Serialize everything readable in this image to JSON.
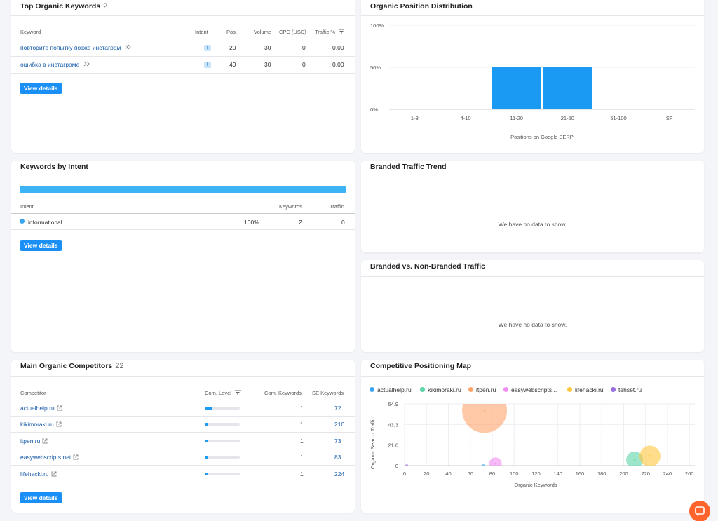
{
  "top_keywords": {
    "title": "Top Organic Keywords",
    "count": "2",
    "columns": {
      "keyword": "Keyword",
      "intent": "Intent",
      "pos": "Pos.",
      "volume": "Volume",
      "cpc": "CPC (USD)",
      "traffic": "Traffic %"
    },
    "rows": [
      {
        "keyword": "повторите попытку позже инстаграм",
        "intent": "I",
        "pos": "20",
        "volume": "30",
        "cpc": "0",
        "traffic": "0.00"
      },
      {
        "keyword": "ошибка в инстаграме",
        "intent": "I",
        "pos": "49",
        "volume": "30",
        "cpc": "0",
        "traffic": "0.00"
      }
    ],
    "button": "View details"
  },
  "position_distribution": {
    "title": "Organic Position Distribution",
    "chart_data": {
      "type": "bar",
      "categories": [
        "1-3",
        "4-10",
        "11-20",
        "21-50",
        "51-100",
        "SF"
      ],
      "values": [
        0,
        0,
        50,
        50,
        0,
        0
      ],
      "ytick_labels": [
        "100%",
        "50%",
        "0%"
      ],
      "ylim": [
        0,
        100
      ],
      "xlabel": "Positions on Google SERP",
      "color": "#1a9af2"
    }
  },
  "keywords_by_intent": {
    "title": "Keywords by Intent",
    "columns": {
      "intent": "Intent",
      "keywords": "Keywords",
      "traffic": "Traffic"
    },
    "rows": [
      {
        "name": "informational",
        "percent": "100%",
        "keywords": "2",
        "traffic": "0",
        "color": "#3ba4ef",
        "share": 100
      }
    ],
    "button": "View details"
  },
  "branded_trend": {
    "title": "Branded Traffic Trend",
    "message": "We have no data to show."
  },
  "branded_vs_non": {
    "title": "Branded vs. Non-Branded Traffic",
    "message": "We have no data to show."
  },
  "competitors": {
    "title": "Main Organic Competitors",
    "count": "22",
    "columns": {
      "competitor": "Competitor",
      "level": "Com. Level",
      "com_keywords": "Com. Keywords",
      "se_keywords": "SE Keywords"
    },
    "rows": [
      {
        "domain": "actualhelp.ru",
        "level": 0.22,
        "com_keywords": "1",
        "se_keywords": "72"
      },
      {
        "domain": "kikimoraki.ru",
        "level": 0.1,
        "com_keywords": "1",
        "se_keywords": "210"
      },
      {
        "domain": "itpen.ru",
        "level": 0.1,
        "com_keywords": "1",
        "se_keywords": "73"
      },
      {
        "domain": "easywebscripts.net",
        "level": 0.1,
        "com_keywords": "1",
        "se_keywords": "83"
      },
      {
        "domain": "lifehacki.ru",
        "level": 0.08,
        "com_keywords": "1",
        "se_keywords": "224"
      }
    ],
    "button": "View details"
  },
  "positioning_map": {
    "title": "Competitive Positioning Map",
    "chart_data": {
      "type": "scatter",
      "xlabel": "Organic Keywords",
      "ylabel": "Organic Search Traffic",
      "xlim": [
        0,
        265
      ],
      "ylim": [
        0,
        64.9
      ],
      "xticks": [
        0,
        20,
        40,
        60,
        80,
        100,
        120,
        140,
        160,
        180,
        200,
        220,
        240,
        260
      ],
      "yticks": [
        "0",
        "21.6",
        "43.3",
        "64.9"
      ],
      "series": [
        {
          "name": "actualhelp.ru",
          "color": "#3ba4ef",
          "x": 72,
          "y": 0,
          "size": 2
        },
        {
          "name": "kikimoraki.ru",
          "color": "#5ed6a8",
          "x": 210,
          "y": 6,
          "size": 12
        },
        {
          "name": "itpen.ru",
          "color": "#ffa36b",
          "x": 73,
          "y": 58,
          "size": 32
        },
        {
          "name": "easywebscripts...",
          "color": "#f08cf0",
          "x": 83,
          "y": 2,
          "size": 9
        },
        {
          "name": "lifehacki.ru",
          "color": "#ffc73d",
          "x": 224,
          "y": 10,
          "size": 15
        },
        {
          "name": "tehset.ru",
          "color": "#9a6ee0",
          "x": 2,
          "y": 0,
          "size": 2
        }
      ]
    }
  }
}
